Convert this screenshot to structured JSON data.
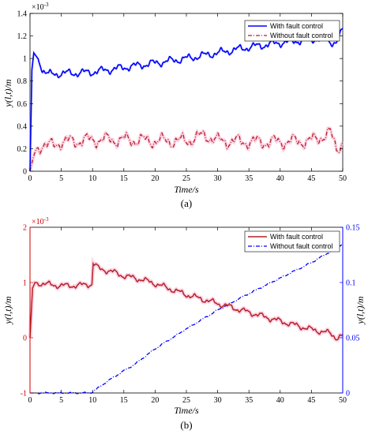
{
  "chart_data": [
    {
      "type": "line",
      "panel_label": "(a)",
      "xlabel": "Time/s",
      "ylabel": "y(l,t)/m",
      "y_exponent": "×10",
      "y_exponent_power": "-3",
      "xlim": [
        0,
        50
      ],
      "ylim": [
        0,
        1.4
      ],
      "xticks": [
        "0",
        "5",
        "10",
        "15",
        "20",
        "25",
        "30",
        "35",
        "40",
        "45",
        "50"
      ],
      "yticks": [
        "0",
        "0.2",
        "0.4",
        "0.6",
        "0.8",
        "1",
        "1.2",
        "1.4"
      ],
      "legend_position": "top-right",
      "series": [
        {
          "name": "With fault control",
          "color": "#0000ff",
          "style": "solid",
          "x": [
            0,
            0.3,
            0.6,
            1,
            1.5,
            2,
            3,
            4,
            5,
            7,
            10,
            15,
            20,
            25,
            30,
            35,
            40,
            45,
            47,
            48,
            49,
            50
          ],
          "y": [
            0,
            0.9,
            1.05,
            1.02,
            0.98,
            0.9,
            0.86,
            0.86,
            0.87,
            0.87,
            0.88,
            0.92,
            0.96,
            1.0,
            1.05,
            1.1,
            1.14,
            1.17,
            1.18,
            1.15,
            1.14,
            1.25
          ]
        },
        {
          "name": "Without fault control",
          "color": "#b22222",
          "style": "dashdot",
          "x": [
            0,
            0.5,
            1,
            2,
            3,
            5,
            8,
            10,
            15,
            20,
            25,
            28,
            30,
            35,
            40,
            45,
            48,
            49,
            50
          ],
          "y": [
            0,
            0.12,
            0.2,
            0.24,
            0.22,
            0.26,
            0.27,
            0.28,
            0.28,
            0.27,
            0.27,
            0.32,
            0.27,
            0.26,
            0.26,
            0.27,
            0.34,
            0.2,
            0.26
          ]
        }
      ]
    },
    {
      "type": "line",
      "panel_label": "(b)",
      "xlabel": "Time/s",
      "ylabel": "y(l,t)/m",
      "ylabel_right": "y(l,t)/m",
      "y_exponent": "×10",
      "y_exponent_power": "-3",
      "xlim": [
        0,
        50
      ],
      "ylim": [
        -1,
        2
      ],
      "ylim_right": [
        0,
        0.15
      ],
      "xticks": [
        "0",
        "5",
        "10",
        "15",
        "20",
        "25",
        "30",
        "35",
        "40",
        "45",
        "50"
      ],
      "yticks": [
        "-1",
        "0",
        "1",
        "2"
      ],
      "yticks_right": [
        "0",
        "0.05",
        "0.1",
        "0.15"
      ],
      "left_axis_color": "#cc0000",
      "right_axis_color": "#0000ff",
      "legend_position": "top-right",
      "series": [
        {
          "name": "With fault control",
          "color": "#b22222",
          "style": "solid",
          "axis": "left",
          "x": [
            0,
            0.4,
            0.8,
            2,
            4,
            6,
            8,
            9.9,
            10.1,
            11,
            13,
            15,
            18,
            20,
            25,
            30,
            35,
            40,
            45,
            48,
            49,
            50
          ],
          "y": [
            0,
            0.9,
            1.0,
            0.98,
            0.95,
            0.94,
            0.95,
            0.97,
            1.35,
            1.25,
            1.2,
            1.12,
            1.05,
            0.98,
            0.78,
            0.62,
            0.46,
            0.3,
            0.15,
            0.08,
            0,
            0.03
          ]
        },
        {
          "name": "Without fault control",
          "color": "#0000ff",
          "style": "dashdot",
          "axis": "right",
          "x": [
            0,
            5,
            9.5,
            10,
            11,
            13,
            15,
            17,
            20,
            25,
            30,
            35,
            40,
            45,
            48,
            50
          ],
          "y": [
            0,
            0,
            0,
            0.001,
            0.005,
            0.013,
            0.02,
            0.027,
            0.04,
            0.058,
            0.075,
            0.09,
            0.104,
            0.118,
            0.128,
            0.135
          ]
        }
      ]
    }
  ]
}
